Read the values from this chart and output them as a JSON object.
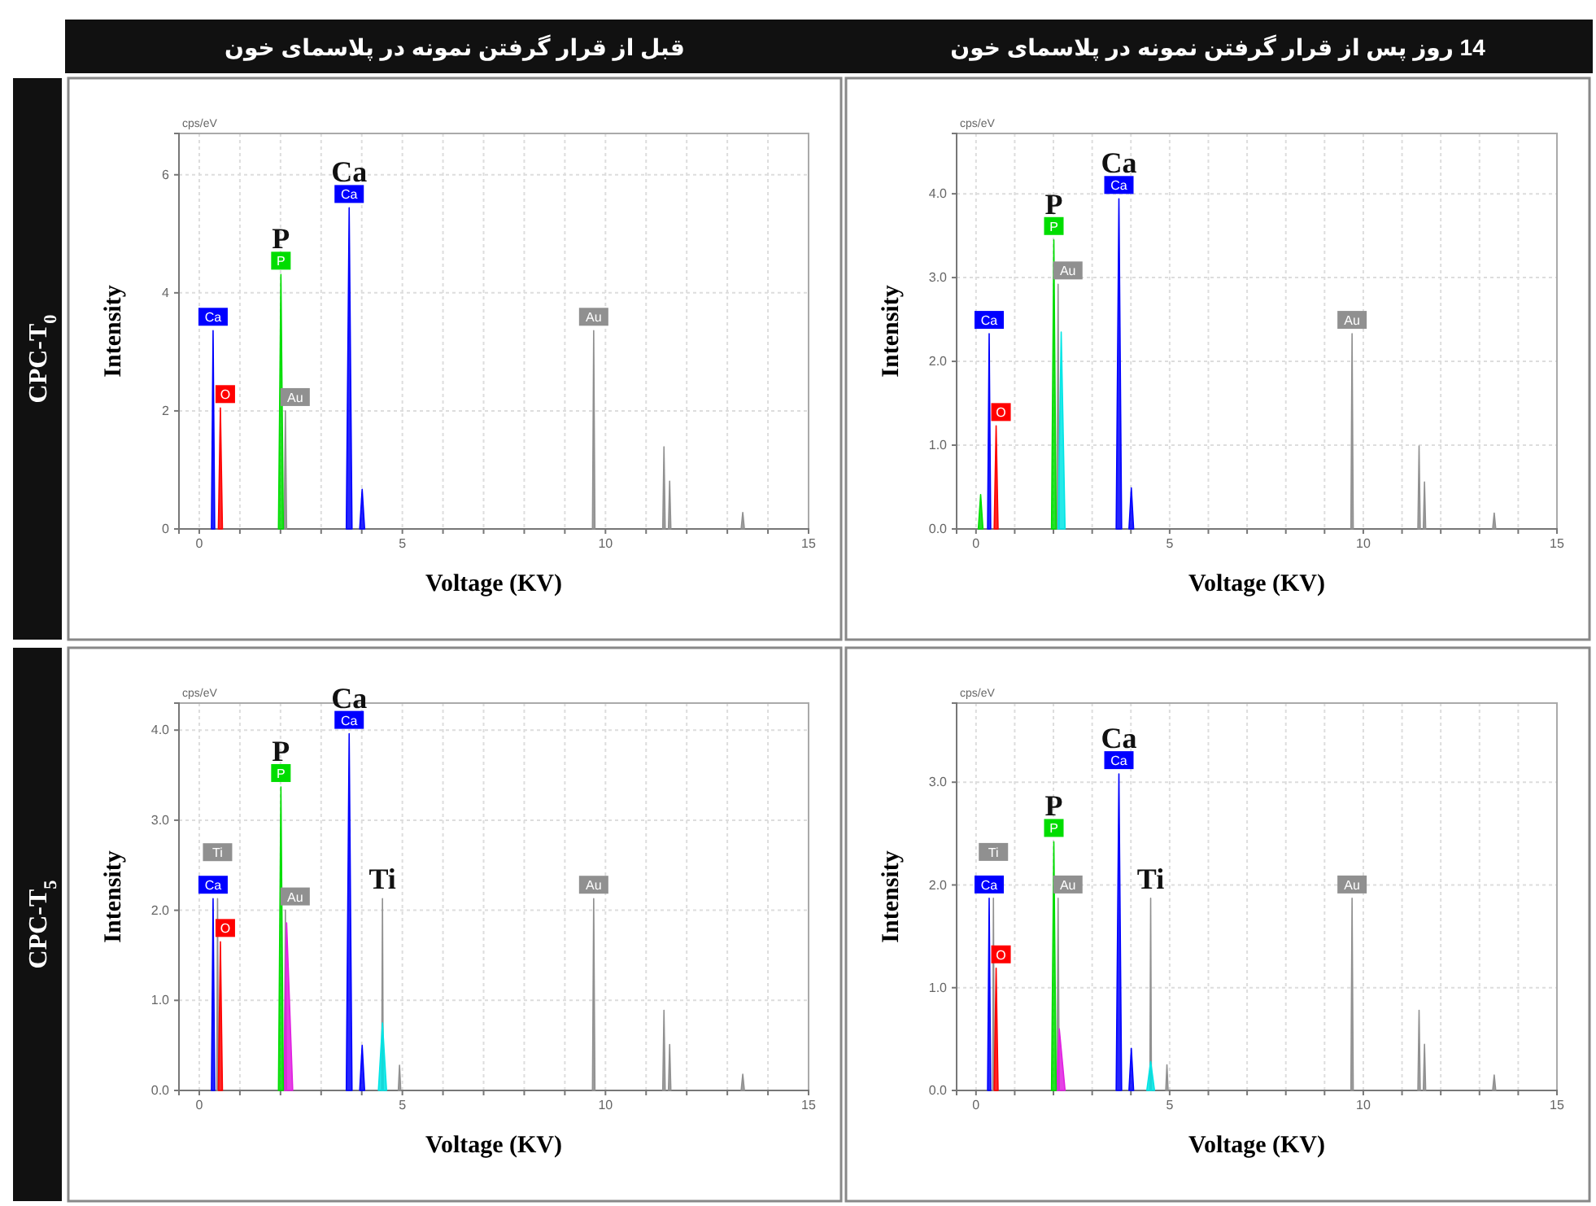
{
  "chart_data": [
    {
      "type": "area",
      "title": "قبل از قرار گرفتن نمونه در پلاسمای خون",
      "subtitle": "CPC-T$_{0}$",
      "xlabel": "Voltage (KV)",
      "ylabel": "Intensity",
      "grid": true,
      "xlim": [
        -0.5,
        15
      ],
      "xticks": [
        0,
        {
          "value": 1,
          "label": null
        },
        {
          "value": 2,
          "label": null
        },
        {
          "value": 3,
          "label": null
        },
        {
          "value": 4,
          "label": null
        },
        5,
        {
          "value": 6,
          "label": null
        },
        {
          "value": 7,
          "label": null
        },
        {
          "value": 8,
          "label": null
        },
        {
          "value": 9,
          "label": null
        },
        10,
        {
          "value": 11,
          "label": null
        },
        {
          "value": 12,
          "label": null
        },
        {
          "value": 13,
          "label": null
        },
        {
          "value": 14,
          "label": null
        },
        15
      ],
      "ylim": [
        0,
        6.7
      ],
      "yticks": [
        0,
        2,
        4,
        6
      ],
      "annotations": [
        "cps/eV",
        {
          "text": "Ca",
          "x": 3.69,
          "y": 5.44
        },
        {
          "text": "P",
          "x": 2.01,
          "y": 4.31
        }
      ],
      "series": [
        {
          "name": "Ca",
          "color": "#0000ff",
          "x": [
            0.3,
            0.34,
            0.38
          ],
          "values": [
            0,
            3.36,
            0
          ]
        },
        {
          "name": "O",
          "color": "#ff0000",
          "x": [
            0.47,
            0.52,
            0.57
          ],
          "values": [
            0,
            2.05,
            0
          ]
        },
        {
          "name": "Au",
          "color": "#909090",
          "x": [
            2.09,
            2.12,
            2.15
          ],
          "values": [
            0,
            2.0,
            0
          ]
        },
        {
          "name": "P",
          "color": "#00dd00",
          "x": [
            1.95,
            2.01,
            2.07
          ],
          "values": [
            0,
            4.31,
            0
          ]
        },
        {
          "name": "Ca",
          "color": "#0000ff",
          "x": [
            3.62,
            3.69,
            3.76
          ],
          "values": [
            0,
            5.44,
            0
          ]
        },
        {
          "color": "#0000ff",
          "x": [
            3.95,
            4.01,
            4.07
          ],
          "values": [
            0,
            0.67,
            0
          ]
        },
        {
          "name": "Au",
          "color": "#909090",
          "x": [
            9.68,
            9.71,
            9.74
          ],
          "values": [
            0,
            3.36,
            0
          ]
        },
        {
          "color": "#909090",
          "x": [
            11.41,
            11.44,
            11.47
          ],
          "values": [
            0,
            1.39,
            0
          ]
        },
        {
          "color": "#909090",
          "x": [
            11.55,
            11.58,
            11.61
          ],
          "values": [
            0,
            0.81,
            0
          ]
        },
        {
          "color": "#909090",
          "x": [
            13.34,
            13.38,
            13.42
          ],
          "values": [
            0,
            0.28,
            0
          ]
        }
      ]
    },
    {
      "type": "area",
      "title": "14 روز پس از قرار گرفتن نمونه در پلاسمای خون",
      "xlabel": "Voltage (KV)",
      "ylabel": "Intensity",
      "grid": true,
      "xlim": [
        -0.5,
        15
      ],
      "xticks": [
        0,
        {
          "value": 1,
          "label": null
        },
        {
          "value": 2,
          "label": null
        },
        {
          "value": 3,
          "label": null
        },
        {
          "value": 4,
          "label": null
        },
        5,
        {
          "value": 6,
          "label": null
        },
        {
          "value": 7,
          "label": null
        },
        {
          "value": 8,
          "label": null
        },
        {
          "value": 9,
          "label": null
        },
        10,
        {
          "value": 11,
          "label": null
        },
        {
          "value": 12,
          "label": null
        },
        {
          "value": 13,
          "label": null
        },
        {
          "value": 14,
          "label": null
        },
        15
      ],
      "ylim": [
        0,
        4.72
      ],
      "yticks": [
        {
          "value": 0,
          "label": "0.0"
        },
        {
          "value": 1,
          "label": "1.0"
        },
        {
          "value": 2,
          "label": "2.0"
        },
        {
          "value": 3,
          "label": "3.0"
        },
        {
          "value": 4,
          "label": "4.0"
        }
      ],
      "annotations": [
        "cps/eV",
        {
          "text": "Ca",
          "x": 3.69,
          "y": 3.94
        },
        {
          "text": "P",
          "x": 2.01,
          "y": 3.45
        }
      ],
      "series": [
        {
          "color": "#00dd00",
          "x": [
            0.06,
            0.12,
            0.18
          ],
          "values": [
            0,
            0.41,
            0
          ]
        },
        {
          "name": "Ca",
          "color": "#0000ff",
          "x": [
            0.3,
            0.34,
            0.38
          ],
          "values": [
            0,
            2.33,
            0
          ]
        },
        {
          "name": "O",
          "color": "#ff0000",
          "x": [
            0.47,
            0.52,
            0.57
          ],
          "values": [
            0,
            1.23,
            0
          ]
        },
        {
          "name": "Au",
          "color": "#909090",
          "x": [
            2.09,
            2.12,
            2.15
          ],
          "values": [
            0,
            2.92,
            0
          ]
        },
        {
          "color": "#00e5e5",
          "x": [
            2.12,
            2.2,
            2.3
          ],
          "values": [
            0,
            2.35,
            0
          ]
        },
        {
          "name": "P",
          "color": "#00dd00",
          "x": [
            1.95,
            2.01,
            2.07
          ],
          "values": [
            0,
            3.45,
            0
          ]
        },
        {
          "name": "Ca",
          "color": "#0000ff",
          "x": [
            3.62,
            3.69,
            3.76
          ],
          "values": [
            0,
            3.94,
            0
          ]
        },
        {
          "color": "#0000ff",
          "x": [
            3.95,
            4.01,
            4.07
          ],
          "values": [
            0,
            0.49,
            0
          ]
        },
        {
          "name": "Au",
          "color": "#909090",
          "x": [
            9.68,
            9.71,
            9.74
          ],
          "values": [
            0,
            2.33,
            0
          ]
        },
        {
          "color": "#909090",
          "x": [
            11.41,
            11.44,
            11.47
          ],
          "values": [
            0,
            0.99,
            0
          ]
        },
        {
          "color": "#909090",
          "x": [
            11.55,
            11.58,
            11.61
          ],
          "values": [
            0,
            0.56,
            0
          ]
        },
        {
          "color": "#909090",
          "x": [
            13.34,
            13.38,
            13.42
          ],
          "values": [
            0,
            0.19,
            0
          ]
        }
      ]
    },
    {
      "type": "area",
      "subtitle": "CPC-T$_{5}$",
      "xlabel": "Voltage (KV)",
      "ylabel": "Intensity",
      "grid": true,
      "xlim": [
        -0.5,
        15
      ],
      "xticks": [
        0,
        {
          "value": 1,
          "label": null
        },
        {
          "value": 2,
          "label": null
        },
        {
          "value": 3,
          "label": null
        },
        {
          "value": 4,
          "label": null
        },
        5,
        {
          "value": 6,
          "label": null
        },
        {
          "value": 7,
          "label": null
        },
        {
          "value": 8,
          "label": null
        },
        {
          "value": 9,
          "label": null
        },
        10,
        {
          "value": 11,
          "label": null
        },
        {
          "value": 12,
          "label": null
        },
        {
          "value": 13,
          "label": null
        },
        {
          "value": 14,
          "label": null
        },
        15
      ],
      "ylim": [
        0,
        4.3
      ],
      "yticks": [
        {
          "value": 0,
          "label": "0.0"
        },
        {
          "value": 1,
          "label": "1.0"
        },
        {
          "value": 2,
          "label": "2.0"
        },
        {
          "value": 3,
          "label": "3.0"
        },
        {
          "value": 4,
          "label": "4.0"
        }
      ],
      "annotations": [
        "cps/eV",
        {
          "text": "Ca",
          "x": 3.69,
          "y": 3.96
        },
        {
          "text": "P",
          "x": 2.01,
          "y": 3.37
        },
        {
          "text": "Ti",
          "x": 4.51,
          "y": 2.13
        }
      ],
      "series": [
        {
          "name": "Ca",
          "color": "#0000ff",
          "x": [
            0.3,
            0.34,
            0.38
          ],
          "values": [
            0,
            2.13,
            0
          ]
        },
        {
          "name": "Ti",
          "color": "#909090",
          "x": [
            0.43,
            0.45,
            0.47
          ],
          "values": [
            0,
            2.13,
            0
          ]
        },
        {
          "name": "O",
          "color": "#ff0000",
          "x": [
            0.47,
            0.52,
            0.57
          ],
          "values": [
            0,
            1.65,
            0
          ]
        },
        {
          "name": "Au",
          "color": "#909090",
          "x": [
            2.09,
            2.12,
            2.15
          ],
          "values": [
            0,
            2.0,
            0
          ]
        },
        {
          "color": "#e020e0",
          "x": [
            2.08,
            2.15,
            2.3
          ],
          "values": [
            0,
            1.86,
            0
          ]
        },
        {
          "name": "P",
          "color": "#00dd00",
          "x": [
            1.95,
            2.01,
            2.07
          ],
          "values": [
            0,
            3.37,
            0
          ]
        },
        {
          "name": "Ca",
          "color": "#0000ff",
          "x": [
            3.62,
            3.69,
            3.76
          ],
          "values": [
            0,
            3.96,
            0
          ]
        },
        {
          "color": "#0000ff",
          "x": [
            3.95,
            4.01,
            4.07
          ],
          "values": [
            0,
            0.5,
            0
          ]
        },
        {
          "color": "#909090",
          "x": [
            4.49,
            4.51,
            4.53
          ],
          "values": [
            0,
            2.13,
            0
          ]
        },
        {
          "color": "#00e5e5",
          "x": [
            4.41,
            4.51,
            4.61
          ],
          "values": [
            0,
            0.75,
            0
          ]
        },
        {
          "color": "#909090",
          "x": [
            4.9,
            4.93,
            4.96
          ],
          "values": [
            0,
            0.28,
            0
          ]
        },
        {
          "name": "Au",
          "color": "#909090",
          "x": [
            9.68,
            9.71,
            9.74
          ],
          "values": [
            0,
            2.13,
            0
          ]
        },
        {
          "color": "#909090",
          "x": [
            11.41,
            11.44,
            11.47
          ],
          "values": [
            0,
            0.89,
            0
          ]
        },
        {
          "color": "#909090",
          "x": [
            11.55,
            11.58,
            11.61
          ],
          "values": [
            0,
            0.51,
            0
          ]
        },
        {
          "color": "#909090",
          "x": [
            13.34,
            13.38,
            13.42
          ],
          "values": [
            0,
            0.18,
            0
          ]
        }
      ]
    },
    {
      "type": "area",
      "xlabel": "Voltage (KV)",
      "ylabel": "Intensity",
      "grid": true,
      "xlim": [
        -0.5,
        15
      ],
      "xticks": [
        0,
        {
          "value": 1,
          "label": null
        },
        {
          "value": 2,
          "label": null
        },
        {
          "value": 3,
          "label": null
        },
        {
          "value": 4,
          "label": null
        },
        5,
        {
          "value": 6,
          "label": null
        },
        {
          "value": 7,
          "label": null
        },
        {
          "value": 8,
          "label": null
        },
        {
          "value": 9,
          "label": null
        },
        10,
        {
          "value": 11,
          "label": null
        },
        {
          "value": 12,
          "label": null
        },
        {
          "value": 13,
          "label": null
        },
        {
          "value": 14,
          "label": null
        },
        15
      ],
      "ylim": [
        0,
        3.77
      ],
      "yticks": [
        {
          "value": 0,
          "label": "0.0"
        },
        {
          "value": 1,
          "label": "1.0"
        },
        {
          "value": 2,
          "label": "2.0"
        },
        {
          "value": 3,
          "label": "3.0"
        }
      ],
      "annotations": [
        "cps/eV",
        {
          "text": "Ca",
          "x": 3.69,
          "y": 3.08
        },
        {
          "text": "P",
          "x": 2.01,
          "y": 2.42
        },
        {
          "text": "Ti",
          "x": 4.51,
          "y": 1.87
        }
      ],
      "series": [
        {
          "name": "Ca",
          "color": "#0000ff",
          "x": [
            0.3,
            0.34,
            0.38
          ],
          "values": [
            0,
            1.87,
            0
          ]
        },
        {
          "name": "Ti",
          "color": "#909090",
          "x": [
            0.43,
            0.45,
            0.47
          ],
          "values": [
            0,
            1.87,
            0
          ]
        },
        {
          "name": "O",
          "color": "#ff0000",
          "x": [
            0.47,
            0.52,
            0.57
          ],
          "values": [
            0,
            1.19,
            0
          ]
        },
        {
          "name": "Au",
          "color": "#909090",
          "x": [
            2.09,
            2.12,
            2.15
          ],
          "values": [
            0,
            1.87,
            0
          ]
        },
        {
          "color": "#e020e0",
          "x": [
            2.08,
            2.15,
            2.3
          ],
          "values": [
            0,
            0.6,
            0
          ]
        },
        {
          "name": "P",
          "color": "#00dd00",
          "x": [
            1.95,
            2.01,
            2.07
          ],
          "values": [
            0,
            2.42,
            0
          ]
        },
        {
          "name": "Ca",
          "color": "#0000ff",
          "x": [
            3.62,
            3.69,
            3.76
          ],
          "values": [
            0,
            3.08,
            0
          ]
        },
        {
          "color": "#0000ff",
          "x": [
            3.95,
            4.01,
            4.07
          ],
          "values": [
            0,
            0.41,
            0
          ]
        },
        {
          "color": "#909090",
          "x": [
            4.49,
            4.51,
            4.53
          ],
          "values": [
            0,
            1.87,
            0
          ]
        },
        {
          "color": "#00e5e5",
          "x": [
            4.41,
            4.51,
            4.61
          ],
          "values": [
            0,
            0.28,
            0
          ]
        },
        {
          "color": "#909090",
          "x": [
            4.9,
            4.93,
            4.96
          ],
          "values": [
            0,
            0.25,
            0
          ]
        },
        {
          "name": "Au",
          "color": "#909090",
          "x": [
            9.68,
            9.71,
            9.74
          ],
          "values": [
            0,
            1.87,
            0
          ]
        },
        {
          "color": "#909090",
          "x": [
            11.41,
            11.44,
            11.47
          ],
          "values": [
            0,
            0.78,
            0
          ]
        },
        {
          "color": "#909090",
          "x": [
            11.55,
            11.58,
            11.61
          ],
          "values": [
            0,
            0.45,
            0
          ]
        },
        {
          "color": "#909090",
          "x": [
            13.34,
            13.38,
            13.42
          ],
          "values": [
            0,
            0.15,
            0
          ]
        }
      ]
    }
  ]
}
